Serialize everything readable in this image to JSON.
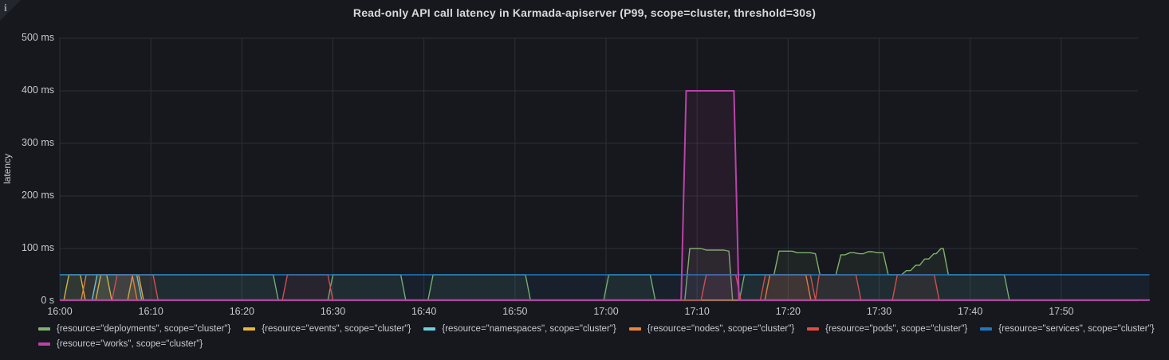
{
  "panel": {
    "title": "Read-only API call latency in Karmada-apiserver (P99, scope=cluster, threshold=30s)",
    "info_icon_glyph": "i"
  },
  "colors": {
    "background": "#16181d",
    "grid": "#2c3137",
    "tick_text": "#c5cad0",
    "title_text": "#d8d9da"
  },
  "chart_data": {
    "type": "line",
    "title": "Read-only API call latency in Karmada-apiserver (P99, scope=cluster, threshold=30s)",
    "xlabel": "",
    "ylabel": "latency",
    "x_unit": "minutes after 16:00",
    "x_domain": [
      0,
      120
    ],
    "y_domain": [
      0,
      500
    ],
    "grid": true,
    "legend_position": "bottom-left",
    "y_ticks": [
      {
        "v": 0,
        "label": "0 s"
      },
      {
        "v": 100,
        "label": "100 ms"
      },
      {
        "v": 200,
        "label": "200 ms"
      },
      {
        "v": 300,
        "label": "300 ms"
      },
      {
        "v": 400,
        "label": "400 ms"
      },
      {
        "v": 500,
        "label": "500 ms"
      }
    ],
    "x_ticks": [
      {
        "v": 0,
        "label": "16:00"
      },
      {
        "v": 10,
        "label": "16:10"
      },
      {
        "v": 20,
        "label": "16:20"
      },
      {
        "v": 30,
        "label": "16:30"
      },
      {
        "v": 40,
        "label": "16:40"
      },
      {
        "v": 50,
        "label": "16:50"
      },
      {
        "v": 60,
        "label": "17:00"
      },
      {
        "v": 70,
        "label": "17:10"
      },
      {
        "v": 80,
        "label": "17:20"
      },
      {
        "v": 90,
        "label": "17:30"
      },
      {
        "v": 100,
        "label": "17:40"
      },
      {
        "v": 110,
        "label": "17:50"
      }
    ],
    "series": [
      {
        "key": "deployments",
        "name": "{resource=\"deployments\", scope=\"cluster\"}",
        "color": "#7EB26D",
        "stroke_width": 1.4,
        "points": [
          [
            0,
            50
          ],
          [
            24,
            2
          ],
          [
            30,
            50
          ],
          [
            38,
            2
          ],
          [
            41,
            50
          ],
          [
            51.7,
            2
          ],
          [
            60.3,
            50
          ],
          [
            65.4,
            2
          ],
          [
            69.2,
            100
          ],
          [
            71,
            97
          ],
          [
            73.5,
            95
          ],
          [
            73.9,
            2
          ],
          [
            75.2,
            50
          ],
          [
            79,
            95
          ],
          [
            81,
            92
          ],
          [
            83,
            90
          ],
          [
            83.5,
            50
          ],
          [
            85.8,
            88
          ],
          [
            86.8,
            92
          ],
          [
            87.8,
            90
          ],
          [
            88.8,
            94
          ],
          [
            89.8,
            92
          ],
          [
            91,
            50
          ],
          [
            93,
            58
          ],
          [
            94,
            68
          ],
          [
            95,
            80
          ],
          [
            96,
            90
          ],
          [
            96.8,
            100
          ],
          [
            97.6,
            50
          ],
          [
            104.3,
            2
          ],
          [
            119.7,
            2
          ]
        ]
      },
      {
        "key": "events",
        "name": "{resource=\"events\", scope=\"cluster\"}",
        "color": "#EAB839",
        "stroke_width": 1.4,
        "points": [
          [
            0,
            2
          ],
          [
            1,
            50
          ],
          [
            2.8,
            2
          ],
          [
            4.5,
            50
          ],
          [
            5.7,
            2
          ],
          [
            8,
            50
          ],
          [
            9.2,
            2
          ],
          [
            119.7,
            2
          ]
        ]
      },
      {
        "key": "namespaces",
        "name": "{resource=\"namespaces\", scope=\"cluster\"}",
        "color": "#6ED0E0",
        "stroke_width": 1.4,
        "points": [
          [
            0,
            2
          ],
          [
            4.1,
            50
          ],
          [
            9,
            2
          ],
          [
            119.7,
            2
          ]
        ]
      },
      {
        "key": "nodes",
        "name": "{resource=\"nodes\", scope=\"cluster\"}",
        "color": "#EF843C",
        "stroke_width": 1.4,
        "points": [
          [
            0,
            2
          ],
          [
            2.9,
            50
          ],
          [
            8.5,
            2
          ],
          [
            78,
            50
          ],
          [
            82.5,
            2
          ],
          [
            119.7,
            2
          ]
        ]
      },
      {
        "key": "pods",
        "name": "{resource=\"pods\", scope=\"cluster\"}",
        "color": "#E24D42",
        "stroke_width": 1.4,
        "points": [
          [
            0,
            2
          ],
          [
            6.3,
            50
          ],
          [
            10.8,
            2
          ],
          [
            25,
            50
          ],
          [
            30,
            2
          ],
          [
            71,
            50
          ],
          [
            74.8,
            2
          ],
          [
            77.5,
            50
          ],
          [
            83,
            2
          ],
          [
            83.4,
            50
          ],
          [
            88,
            2
          ],
          [
            92,
            50
          ],
          [
            96.6,
            2
          ],
          [
            119.7,
            2
          ]
        ]
      },
      {
        "key": "services",
        "name": "{resource=\"services\", scope=\"cluster\"}",
        "color": "#1F78C1",
        "stroke_width": 1.6,
        "points": [
          [
            0,
            50
          ],
          [
            119.7,
            50
          ]
        ]
      },
      {
        "key": "works",
        "name": "{resource=\"works\", scope=\"cluster\"}",
        "color": "#BA43A9",
        "stroke_width": 2,
        "points": [
          [
            0,
            2
          ],
          [
            68.8,
            400
          ],
          [
            74.6,
            2
          ],
          [
            119.7,
            2
          ]
        ]
      }
    ]
  }
}
